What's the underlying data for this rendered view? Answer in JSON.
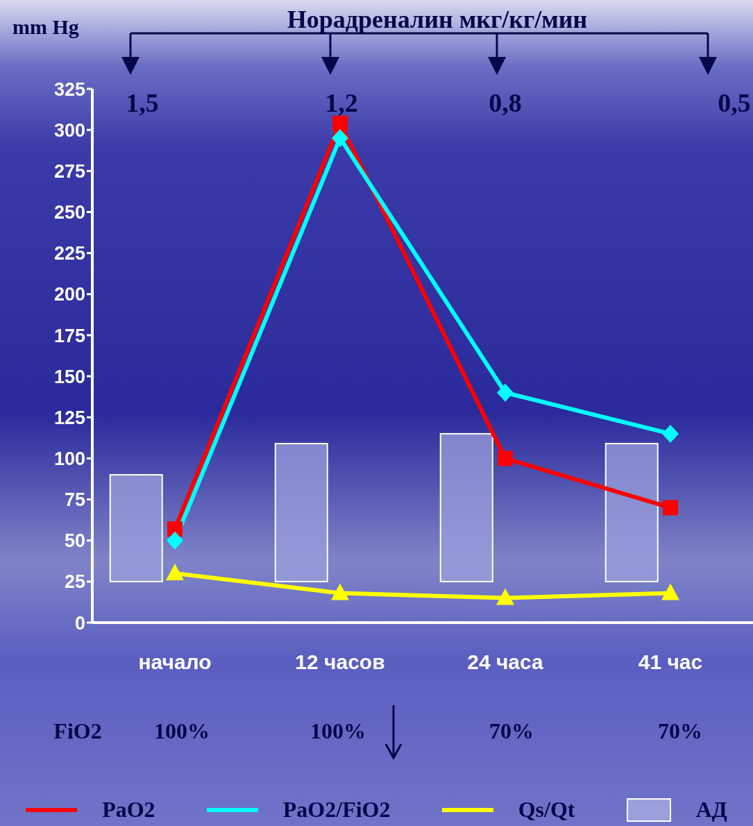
{
  "chart_data": {
    "type": "line",
    "ylabel": "mm Hg",
    "categories": [
      "начало",
      "12 часов",
      "24 часа",
      "41 час"
    ],
    "series": [
      {
        "type": "bar",
        "name": "АД",
        "color": "#9aa0dc",
        "base": [
          25,
          25,
          25,
          25
        ],
        "values": [
          65,
          84,
          90,
          84
        ]
      },
      {
        "name": "PaO2",
        "color": "#ff0000",
        "marker": "square",
        "values": [
          57,
          304,
          100,
          70
        ]
      },
      {
        "name": "PaO2/FiO2",
        "color": "#00ffff",
        "marker": "diamond",
        "values": [
          50,
          295,
          140,
          115
        ]
      },
      {
        "name": "Qs/Qt",
        "color": "#ffff00",
        "marker": "triangle",
        "values": [
          30,
          18,
          15,
          18
        ]
      }
    ],
    "ylim": [
      0,
      325
    ],
    "yticks": [
      0,
      25,
      50,
      75,
      100,
      125,
      150,
      175,
      200,
      225,
      250,
      275,
      300,
      325
    ],
    "grid": false,
    "legend": "bottom",
    "annotations": [
      "Норадреналин мкг/кг/мин",
      "1,5",
      "1,2",
      "0,8",
      "0,5",
      "FiO2",
      "100%",
      "100%",
      "70%",
      "70%"
    ]
  }
}
